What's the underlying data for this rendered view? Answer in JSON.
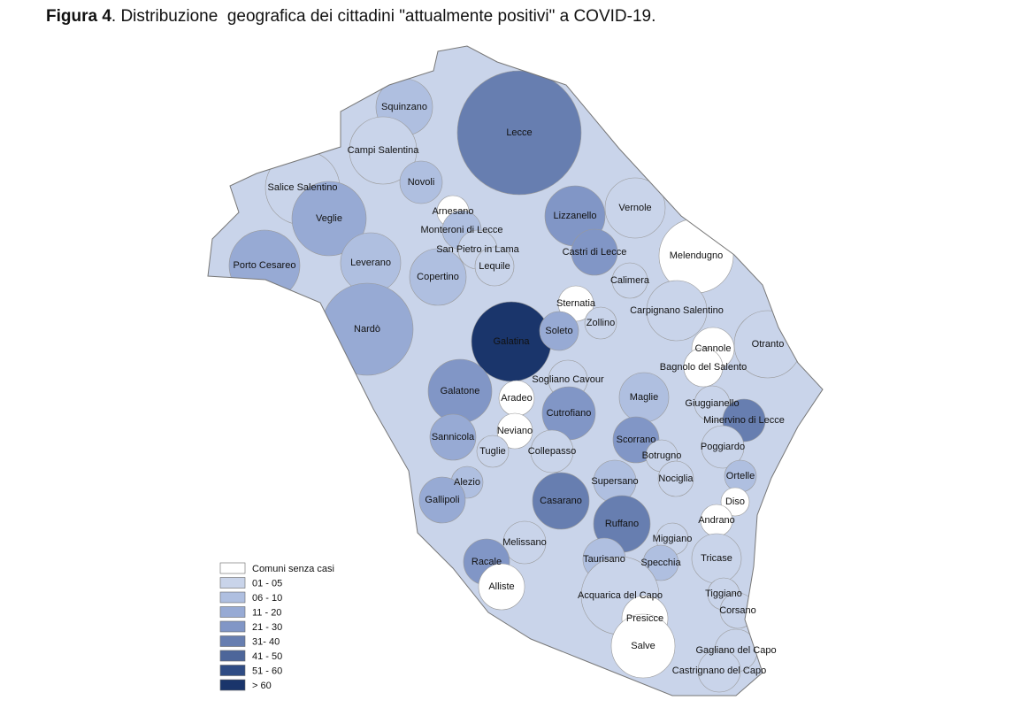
{
  "header": {
    "label": "Figura 4",
    "text": ". Distribuzione  geografica dei cittadini \"attualmente positivi\" a COVID-19."
  },
  "legend": [
    {
      "label": "Comuni senza casi",
      "color": "#ffffff"
    },
    {
      "label": "01 - 05",
      "color": "#c9d4ea"
    },
    {
      "label": "06 - 10",
      "color": "#afbfe0"
    },
    {
      "label": "11 - 20",
      "color": "#97aad4"
    },
    {
      "label": "21 - 30",
      "color": "#8196c6"
    },
    {
      "label": "31- 40",
      "color": "#677eb0"
    },
    {
      "label": "41 - 50",
      "color": "#4d669a"
    },
    {
      "label": "51 - 60",
      "color": "#2f4c84"
    },
    {
      "label": "> 60",
      "color": "#1a356b"
    }
  ],
  "municipalities": [
    {
      "name": "Squinzano",
      "color": "#afbfe0"
    },
    {
      "name": "Lecce",
      "color": "#677eb0"
    },
    {
      "name": "Campi Salentina",
      "color": "#c9d4ea"
    },
    {
      "name": "Novoli",
      "color": "#afbfe0"
    },
    {
      "name": "Salice Salentino",
      "color": "#c9d4ea"
    },
    {
      "name": "Arnesano",
      "color": "#ffffff"
    },
    {
      "name": "Veglie",
      "color": "#97aad4"
    },
    {
      "name": "Monteroni di Lecce",
      "color": "#afbfe0"
    },
    {
      "name": "Lizzanello",
      "color": "#8196c6"
    },
    {
      "name": "Vernole",
      "color": "#c9d4ea"
    },
    {
      "name": "San Pietro in Lama",
      "color": "#c9d4ea"
    },
    {
      "name": "Castri di Lecce",
      "color": "#8196c6"
    },
    {
      "name": "Melendugno",
      "color": "#ffffff"
    },
    {
      "name": "Leverano",
      "color": "#afbfe0"
    },
    {
      "name": "Porto Cesareo",
      "color": "#97aad4"
    },
    {
      "name": "Copertino",
      "color": "#afbfe0"
    },
    {
      "name": "Lequile",
      "color": "#c9d4ea"
    },
    {
      "name": "Calimera",
      "color": "#c9d4ea"
    },
    {
      "name": "Sternatia",
      "color": "#ffffff"
    },
    {
      "name": "Carpignano Salentino",
      "color": "#c9d4ea"
    },
    {
      "name": "Nardò",
      "color": "#97aad4"
    },
    {
      "name": "Galatina",
      "color": "#1a356b"
    },
    {
      "name": "Soleto",
      "color": "#97aad4"
    },
    {
      "name": "Zollino",
      "color": "#c9d4ea"
    },
    {
      "name": "Cannole",
      "color": "#ffffff"
    },
    {
      "name": "Otranto",
      "color": "#c9d4ea"
    },
    {
      "name": "Bagnolo del Salento",
      "color": "#ffffff"
    },
    {
      "name": "Sogliano Cavour",
      "color": "#c9d4ea"
    },
    {
      "name": "Galatone",
      "color": "#8196c6"
    },
    {
      "name": "Aradeo",
      "color": "#ffffff"
    },
    {
      "name": "Maglie",
      "color": "#afbfe0"
    },
    {
      "name": "Giuggianello",
      "color": "#c9d4ea"
    },
    {
      "name": "Cutrofiano",
      "color": "#8196c6"
    },
    {
      "name": "Minervino di Lecce",
      "color": "#677eb0"
    },
    {
      "name": "Neviano",
      "color": "#ffffff"
    },
    {
      "name": "Sannicola",
      "color": "#97aad4"
    },
    {
      "name": "Scorrano",
      "color": "#8196c6"
    },
    {
      "name": "Tuglie",
      "color": "#c9d4ea"
    },
    {
      "name": "Collepasso",
      "color": "#c9d4ea"
    },
    {
      "name": "Botrugno",
      "color": "#c9d4ea"
    },
    {
      "name": "Poggiardo",
      "color": "#c9d4ea"
    },
    {
      "name": "Supersano",
      "color": "#afbfe0"
    },
    {
      "name": "Nociglia",
      "color": "#c9d4ea"
    },
    {
      "name": "Ortelle",
      "color": "#afbfe0"
    },
    {
      "name": "Alezio",
      "color": "#afbfe0"
    },
    {
      "name": "Gallipoli",
      "color": "#97aad4"
    },
    {
      "name": "Casarano",
      "color": "#677eb0"
    },
    {
      "name": "Diso",
      "color": "#ffffff"
    },
    {
      "name": "Ruffano",
      "color": "#677eb0"
    },
    {
      "name": "Andrano",
      "color": "#ffffff"
    },
    {
      "name": "Melissano",
      "color": "#c9d4ea"
    },
    {
      "name": "Miggiano",
      "color": "#c9d4ea"
    },
    {
      "name": "Racale",
      "color": "#8196c6"
    },
    {
      "name": "Taurisano",
      "color": "#afbfe0"
    },
    {
      "name": "Specchia",
      "color": "#afbfe0"
    },
    {
      "name": "Tricase",
      "color": "#c9d4ea"
    },
    {
      "name": "Alliste",
      "color": "#ffffff"
    },
    {
      "name": "Acquarica del Capo",
      "color": "#c9d4ea"
    },
    {
      "name": "Tiggiano",
      "color": "#c9d4ea"
    },
    {
      "name": "Corsano",
      "color": "#c9d4ea"
    },
    {
      "name": "Presicce",
      "color": "#ffffff"
    },
    {
      "name": "Salve",
      "color": "#ffffff"
    },
    {
      "name": "Gagliano del Capo",
      "color": "#c9d4ea"
    },
    {
      "name": "Castrignano del Capo",
      "color": "#c9d4ea"
    }
  ]
}
